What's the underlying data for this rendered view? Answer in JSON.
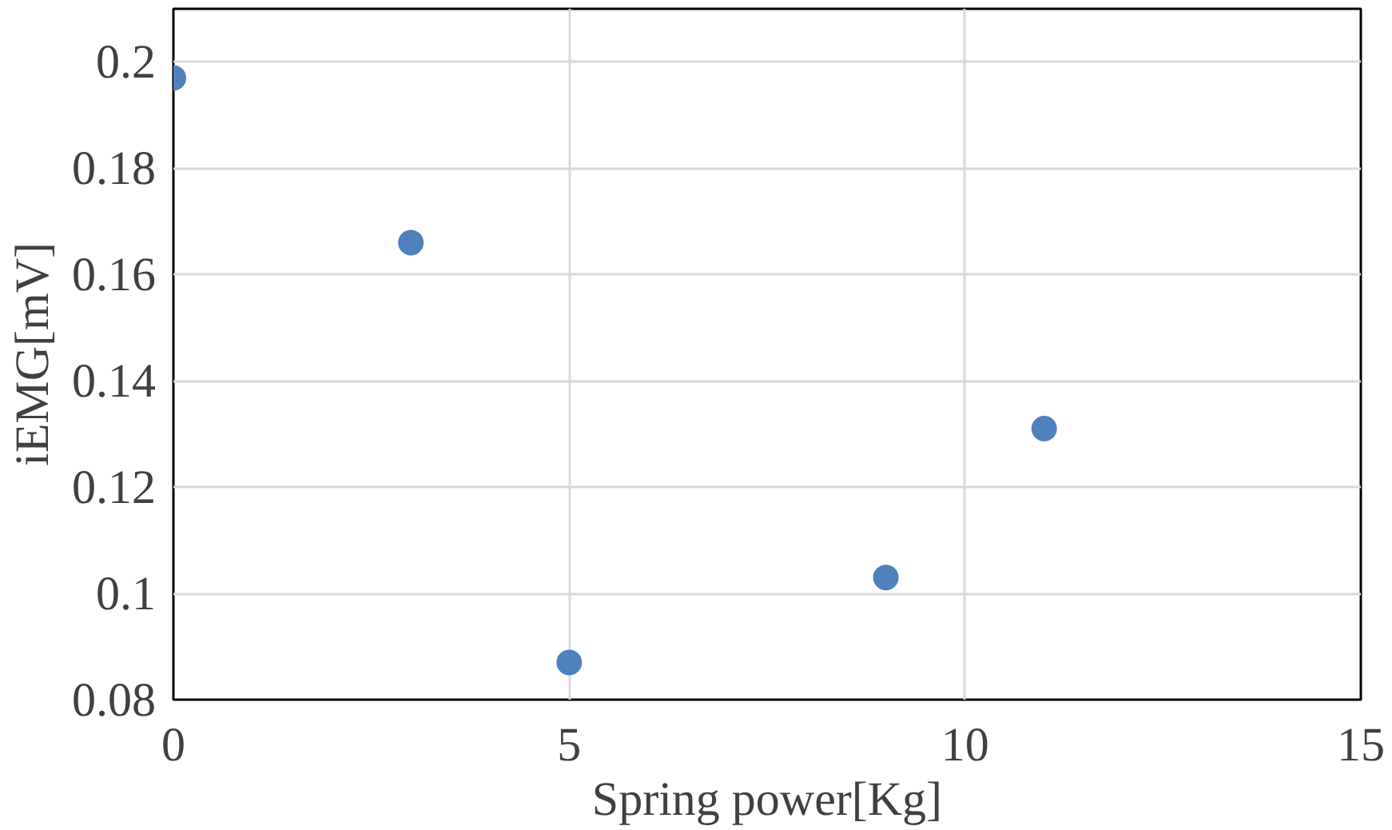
{
  "chart_data": {
    "type": "scatter",
    "xlabel": "Spring power[Kg]",
    "ylabel": "iEMG[mV]",
    "x": [
      0,
      3,
      5,
      9,
      11
    ],
    "series": [
      {
        "color": "#4f81bd",
        "values": [
          0.197,
          0.166,
          0.087,
          0.103,
          0.131
        ]
      }
    ],
    "xlim": [
      0,
      15
    ],
    "xticks": [
      0,
      5,
      10,
      15
    ],
    "ylim": [
      0.08,
      0.21
    ],
    "yticks": [
      0.08,
      {
        "value": 0.1,
        "label": "0.1"
      },
      0.12,
      0.14,
      0.16,
      0.18,
      {
        "value": 0.2,
        "label": "0.2"
      }
    ],
    "grid": true,
    "marker": "circle"
  }
}
